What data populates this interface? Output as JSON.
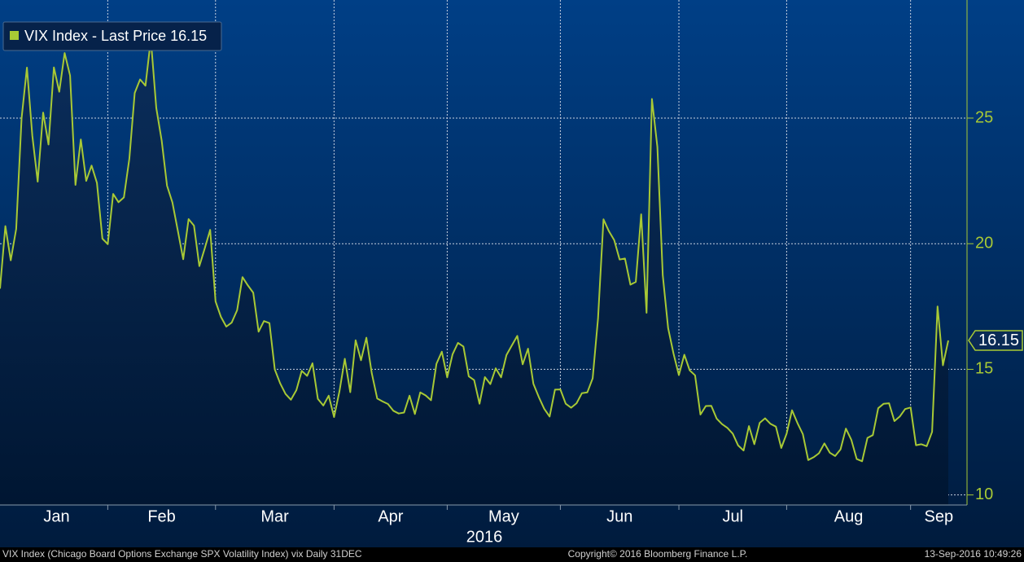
{
  "chart_data": {
    "type": "area",
    "series": [
      {
        "name": "VIX Index - Last Price 16.15",
        "color": "#a8c935",
        "values": [
          18.21,
          20.7,
          19.34,
          20.59,
          24.99,
          27.01,
          24.3,
          22.47,
          25.22,
          23.95,
          27.02,
          26.05,
          27.59,
          26.69,
          22.34,
          24.15,
          22.5,
          23.11,
          22.42,
          20.2,
          19.98,
          21.98,
          21.65,
          21.84,
          23.38,
          26.0,
          26.54,
          26.29,
          28.14,
          25.4,
          24.11,
          22.31,
          21.64,
          20.53,
          19.38,
          20.98,
          20.72,
          19.11,
          19.81,
          20.55,
          17.7,
          17.09,
          16.7,
          16.86,
          17.35,
          18.67,
          18.34,
          18.05,
          16.5,
          16.92,
          16.84,
          14.99,
          14.44,
          14.02,
          13.79,
          14.17,
          14.94,
          14.74,
          15.24,
          13.82,
          13.56,
          13.95,
          13.1,
          14.12,
          15.42,
          14.09,
          16.16,
          15.36,
          16.26,
          14.85,
          13.84,
          13.72,
          13.62,
          13.35,
          13.24,
          13.28,
          13.95,
          13.22,
          14.08,
          13.96,
          13.77,
          15.22,
          15.7,
          14.68,
          15.6,
          16.05,
          15.91,
          14.72,
          14.57,
          13.63,
          14.69,
          14.41,
          15.04,
          14.68,
          15.57,
          15.95,
          16.33,
          15.2,
          15.82,
          14.42,
          13.9,
          13.43,
          13.12,
          14.19,
          14.2,
          13.63,
          13.47,
          13.65,
          14.05,
          14.08,
          14.64,
          17.03,
          20.97,
          20.5,
          20.14,
          19.37,
          19.41,
          18.37,
          18.48,
          21.17,
          17.25,
          25.76,
          23.85,
          18.75,
          16.64,
          15.63,
          14.77,
          15.58,
          14.96,
          14.76,
          13.2,
          13.54,
          13.55,
          13.04,
          12.82,
          12.67,
          12.44,
          11.97,
          11.77,
          12.74,
          12.02,
          12.87,
          13.05,
          12.83,
          12.72,
          11.87,
          12.44,
          13.37,
          12.86,
          12.42,
          11.39,
          11.5,
          11.66,
          12.05,
          11.68,
          11.55,
          11.81,
          12.64,
          12.19,
          11.43,
          11.34,
          12.27,
          12.38,
          13.45,
          13.63,
          13.65,
          12.94,
          13.12,
          13.42,
          13.48,
          11.98,
          12.02,
          11.94,
          12.51,
          17.5,
          15.16,
          16.15
        ]
      }
    ],
    "categories": [
      null,
      "Jan",
      null,
      null,
      null,
      null,
      null,
      null,
      null,
      null,
      null,
      null,
      null,
      null,
      null,
      null,
      null,
      null,
      null,
      null,
      "Feb",
      null,
      null,
      null,
      null,
      null,
      null,
      null,
      null,
      null,
      null,
      null,
      null,
      null,
      null,
      null,
      null,
      null,
      null,
      null,
      "Mar",
      null,
      null,
      null,
      null,
      null,
      null,
      null,
      null,
      null,
      null,
      null,
      null,
      null,
      null,
      null,
      null,
      null,
      null,
      null,
      null,
      null,
      "Apr",
      null,
      null,
      null,
      null,
      null,
      null,
      null,
      null,
      null,
      null,
      null,
      null,
      null,
      null,
      null,
      null,
      null,
      null,
      null,
      null,
      "May",
      null,
      null,
      null,
      null,
      null,
      null,
      null,
      null,
      null,
      null,
      null,
      null,
      null,
      null,
      null,
      null,
      null,
      null,
      null,
      null,
      "Jun",
      null,
      null,
      null,
      null,
      null,
      null,
      null,
      null,
      null,
      null,
      null,
      null,
      null,
      null,
      null,
      null,
      null,
      null,
      null,
      null,
      null,
      "Jul",
      null,
      null,
      null,
      null,
      null,
      null,
      null,
      null,
      null,
      null,
      null,
      null,
      null,
      null,
      null,
      null,
      null,
      null,
      null,
      "Aug",
      null,
      null,
      null,
      null,
      null,
      null,
      null,
      null,
      null,
      null,
      null,
      null,
      null,
      null,
      null,
      null,
      null,
      null,
      null,
      null,
      null,
      null,
      "Sep",
      null,
      null,
      null,
      null,
      null,
      null,
      null
    ],
    "year_label": "2016",
    "ylim": [
      9.6,
      29.7
    ],
    "yticks": [
      10,
      15,
      20,
      25
    ],
    "grid": true,
    "footer": {
      "left": "VIX Index (Chicago Board Options Exchange SPX Volatility Index) vix  Daily 31DEC",
      "center": "Copyright© 2016 Bloomberg Finance L.P.",
      "right": "13-Sep-2016 10:49:26"
    }
  }
}
